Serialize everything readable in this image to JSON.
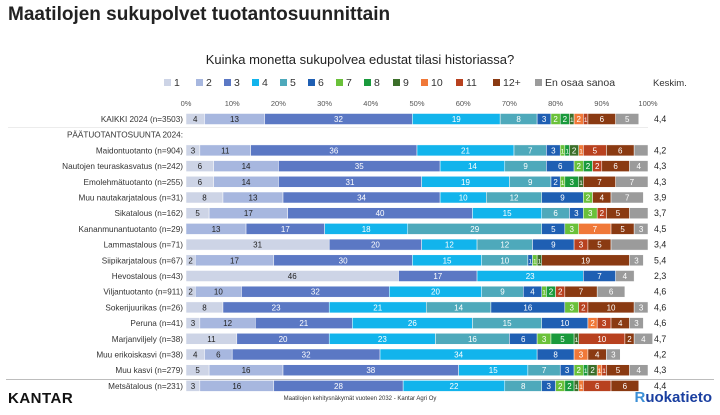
{
  "title": "Maatilojen sukupolvet tuotantosuunnittain",
  "footer": {
    "brand": "KANTAR",
    "note": "Maatilojen kehitysnäkymät vuoteen 2032 - Kantar Agri Oy",
    "logo_r": "R",
    "logo_rest": "uokatieto"
  },
  "chart_data": {
    "type": "bar",
    "stacked": true,
    "orientation": "horizontal",
    "title": "Kuinka monetta sukupolvea edustat tilasi historiassa?",
    "xlim": [
      0,
      100
    ],
    "x_ticks": [
      "0%",
      "10%",
      "20%",
      "30%",
      "40%",
      "50%",
      "60%",
      "70%",
      "80%",
      "90%",
      "100%"
    ],
    "legend_position": "top",
    "series": [
      {
        "name": "1",
        "color": "#cdd4e6"
      },
      {
        "name": "2",
        "color": "#a7b7df"
      },
      {
        "name": "3",
        "color": "#5b78c4"
      },
      {
        "name": "4",
        "color": "#12b4ec"
      },
      {
        "name": "5",
        "color": "#4ea9bb"
      },
      {
        "name": "6",
        "color": "#1f5fb3"
      },
      {
        "name": "7",
        "color": "#6ac13a"
      },
      {
        "name": "8",
        "color": "#1a9a3c"
      },
      {
        "name": "9",
        "color": "#3c6f2a"
      },
      {
        "name": "10",
        "color": "#f07838"
      },
      {
        "name": "11",
        "color": "#b8411f"
      },
      {
        "name": "12+",
        "color": "#8a3a12"
      },
      {
        "name": "En osaa sanoa",
        "color": "#9b9b9b"
      }
    ],
    "mean_header": "Keskim.",
    "rows": [
      {
        "label": "KAIKKI 2024 (n=3503)",
        "values": [
          4,
          13,
          32,
          19,
          8,
          3,
          2,
          2,
          1,
          2,
          1,
          6,
          5
        ],
        "labels": [
          "4",
          "13",
          "32",
          "19",
          "8",
          "3",
          "2",
          "2",
          "1",
          "2",
          "1",
          "6",
          "5"
        ],
        "mean": "4,4"
      },
      {
        "label": "PÄÄTUOTANTOSUUNTA 2024:",
        "header": true
      },
      {
        "label": "Maidontuotanto (n=904)",
        "values": [
          3,
          11,
          36,
          21,
          7,
          3,
          1,
          1,
          2,
          1,
          5,
          6,
          3
        ],
        "labels": [
          "3",
          "11",
          "36",
          "21",
          "7",
          "3",
          "1",
          "1",
          "2",
          "1",
          "5",
          "6",
          ""
        ],
        "mean": "4,2"
      },
      {
        "label": "Nautojen teuraskasvatus (n=242)",
        "values": [
          6,
          14,
          35,
          14,
          9,
          6,
          2,
          2,
          0,
          0,
          2,
          6,
          4
        ],
        "labels": [
          "6",
          "14",
          "35",
          "14",
          "9",
          "6",
          "2",
          "2",
          "",
          "",
          "2",
          "6",
          "4"
        ],
        "mean": "4,3"
      },
      {
        "label": "Emolehmätuotanto (n=255)",
        "values": [
          6,
          14,
          31,
          19,
          9,
          2,
          1,
          3,
          1,
          0,
          0,
          7,
          7
        ],
        "labels": [
          "6",
          "14",
          "31",
          "19",
          "9",
          "2",
          "1",
          "3",
          "1",
          "",
          "",
          "7",
          "7"
        ],
        "mean": "4,3"
      },
      {
        "label": "Muu nautakarjatalous (n=31)",
        "values": [
          8,
          13,
          34,
          10,
          12,
          9,
          2,
          0,
          0,
          0,
          0,
          4,
          7
        ],
        "labels": [
          "8",
          "13",
          "34",
          "10",
          "12",
          "9",
          "2",
          "",
          "",
          "",
          "",
          "4",
          "7"
        ],
        "mean": "3,9"
      },
      {
        "label": "Sikatalous (n=162)",
        "values": [
          5,
          17,
          40,
          15,
          6,
          3,
          3,
          0,
          0,
          0,
          2,
          5,
          4
        ],
        "labels": [
          "5",
          "17",
          "40",
          "15",
          "6",
          "3",
          "3",
          "",
          "",
          "",
          "2",
          "5",
          ""
        ],
        "mean": "3,7"
      },
      {
        "label": "Kananmunantuotanto (n=29)",
        "values": [
          0,
          13,
          17,
          18,
          29,
          5,
          3,
          0,
          0,
          7,
          0,
          5,
          3
        ],
        "labels": [
          "",
          "13",
          "17",
          "18",
          "29",
          "5",
          "3",
          "",
          "",
          "7",
          "",
          "5",
          "3"
        ],
        "mean": "4,5"
      },
      {
        "label": "Lammastalous (n=71)",
        "values": [
          31,
          0,
          20,
          12,
          12,
          9,
          0,
          0,
          0,
          0,
          3,
          5,
          8
        ],
        "labels": [
          "31",
          "",
          "20",
          "12",
          "12",
          "9",
          "",
          "",
          "",
          "",
          "3",
          "5",
          ""
        ],
        "mean": "3,4"
      },
      {
        "label": "Siipikarjatalous (n=67)",
        "values": [
          2,
          17,
          30,
          15,
          10,
          1,
          1,
          0,
          1,
          0,
          0,
          19,
          3
        ],
        "labels": [
          "2",
          "17",
          "30",
          "15",
          "10",
          "1",
          "1",
          "",
          "1",
          "",
          "",
          "19",
          "3"
        ],
        "mean": "5,4"
      },
      {
        "label": "Hevostalous (n=43)",
        "values": [
          46,
          0,
          17,
          23,
          0,
          7,
          0,
          0,
          0,
          0,
          0,
          0,
          4
        ],
        "labels": [
          "46",
          "",
          "17",
          "23",
          "",
          "7",
          "",
          "",
          "",
          "",
          "",
          "",
          "4"
        ],
        "mean": "2,3"
      },
      {
        "label": "Viljantuotanto (n=911)",
        "values": [
          2,
          10,
          32,
          20,
          9,
          4,
          1,
          2,
          0,
          0,
          2,
          7,
          6
        ],
        "labels": [
          "2",
          "10",
          "32",
          "20",
          "9",
          "4",
          "1",
          "2",
          "",
          "",
          "2",
          "7",
          "6"
        ],
        "mean": "4,6"
      },
      {
        "label": "Sokerijuurikas (n=26)",
        "values": [
          8,
          0,
          23,
          21,
          14,
          16,
          3,
          0,
          0,
          0,
          2,
          10,
          3
        ],
        "labels": [
          "8",
          "",
          "23",
          "21",
          "14",
          "16",
          "3",
          "",
          "",
          "",
          "2",
          "10",
          "3"
        ],
        "mean": "4,6"
      },
      {
        "label": "Peruna (n=41)",
        "values": [
          3,
          12,
          21,
          26,
          15,
          10,
          0,
          0,
          0,
          2,
          3,
          4,
          3
        ],
        "labels": [
          "3",
          "12",
          "21",
          "26",
          "15",
          "10",
          "",
          "",
          "",
          "2",
          "3",
          "4",
          "3"
        ],
        "mean": "4,6"
      },
      {
        "label": "Marjanviljely (n=38)",
        "values": [
          11,
          0,
          20,
          23,
          16,
          6,
          3,
          5,
          1,
          0,
          10,
          2,
          4
        ],
        "labels": [
          "11",
          "",
          "20",
          "23",
          "16",
          "6",
          "3",
          "5",
          "1",
          "",
          "10",
          "2",
          "4"
        ],
        "mean": "4,7"
      },
      {
        "label": "Muu erikoiskasvi (n=38)",
        "values": [
          4,
          6,
          32,
          34,
          0,
          8,
          0,
          0,
          0,
          3,
          0,
          4,
          3
        ],
        "labels": [
          "4",
          "6",
          "32",
          "34",
          "",
          "8",
          "",
          "",
          "",
          "3",
          "",
          "4",
          "3"
        ],
        "mean": "4,2"
      },
      {
        "label": "Muu kasvi (n=279)",
        "values": [
          5,
          16,
          38,
          15,
          7,
          3,
          2,
          1,
          2,
          1,
          1,
          5,
          4
        ],
        "labels": [
          "5",
          "16",
          "38",
          "15",
          "7",
          "3",
          "2",
          "1",
          "2",
          "1",
          "1",
          "5",
          "4"
        ],
        "mean": "4,3"
      },
      {
        "label": "Metsätalous (n=231)",
        "values": [
          3,
          16,
          28,
          22,
          8,
          3,
          2,
          2,
          1,
          1,
          6,
          6,
          0
        ],
        "labels": [
          "3",
          "16",
          "28",
          "22",
          "8",
          "3",
          "2",
          "2",
          "1",
          "1",
          "6",
          "6",
          ""
        ],
        "mean": "4,4"
      }
    ]
  }
}
